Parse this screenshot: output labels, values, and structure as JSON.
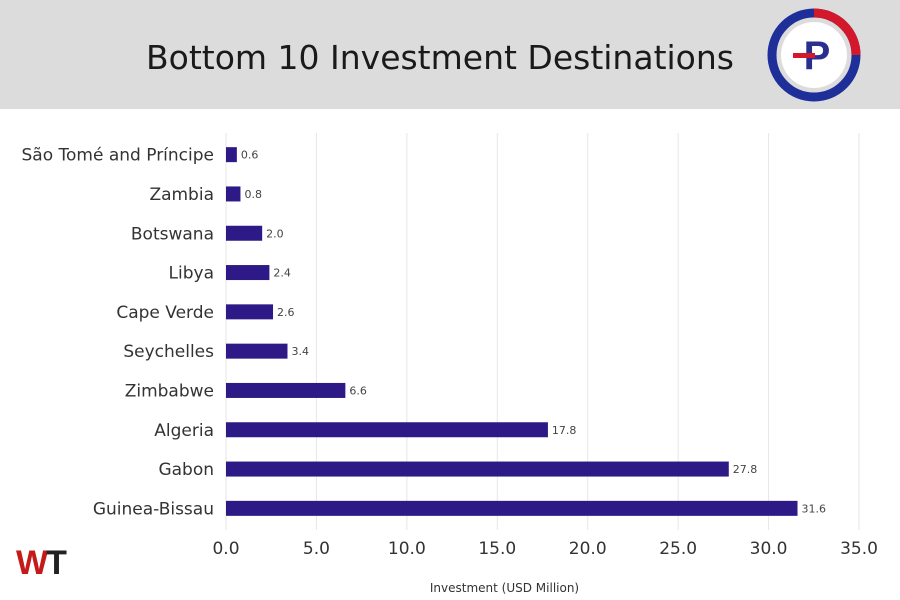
{
  "header": {
    "title": "Bottom 10 Investment Destinations",
    "background_color": "#dcdcdc",
    "logo_icon": "p-circle-logo-icon",
    "logo_letter": "P"
  },
  "footer": {
    "brand_logo_icon": "wt-brand-logo-icon",
    "brand_letters": "WT"
  },
  "colors": {
    "bar": "#2e1a86",
    "grid": "#e6e6e6",
    "label_text": "#333333"
  },
  "chart_data": {
    "type": "bar",
    "orientation": "horizontal",
    "categories": [
      "São Tomé and Príncipe",
      "Zambia",
      "Botswana",
      "Libya",
      "Cape Verde",
      "Seychelles",
      "Zimbabwe",
      "Algeria",
      "Gabon",
      "Guinea-Bissau"
    ],
    "values": [
      0.6,
      0.8,
      2.0,
      2.4,
      2.6,
      3.4,
      6.6,
      17.8,
      27.8,
      31.6
    ],
    "data_labels": [
      "0.6",
      "0.8",
      "2.0",
      "2.4",
      "2.6",
      "3.4",
      "6.6",
      "17.8",
      "27.8",
      "31.6"
    ],
    "title": "Bottom 10 Investment Destinations",
    "xlabel": "Investment (USD Million)",
    "ylabel": "",
    "xlim": [
      0,
      35
    ],
    "x_ticks": [
      "0.0",
      "5.0",
      "10.0",
      "15.0",
      "20.0",
      "25.0",
      "30.0",
      "35.0"
    ],
    "grid": "vertical",
    "legend": "none"
  }
}
